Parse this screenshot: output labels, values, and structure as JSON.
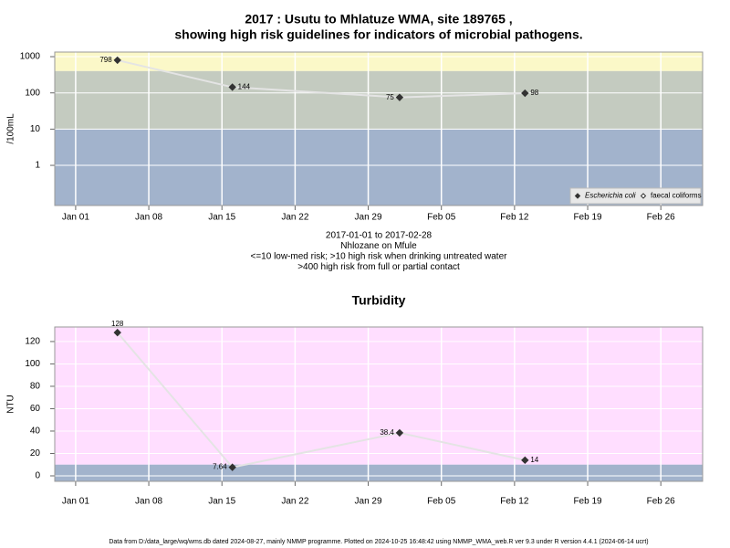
{
  "chart_data": [
    {
      "type": "line",
      "title": [
        "2017 : Usutu to Mhlatuze WMA, site 189765 ,",
        "showing high risk guidelines for indicators of microbial pathogens."
      ],
      "notes": [
        "2017-01-01 to 2017-02-28",
        "Nhlozane on Mfule",
        "<=10 low-med risk; >10 high risk when drinking untreated water",
        ">400 high risk from full or partial contact"
      ],
      "ylabel": "/100mL",
      "log_scale": true,
      "x": [
        "2017-01-05",
        "2017-01-16",
        "2017-02-01",
        "2017-02-13"
      ],
      "xlim": [
        "2016-12-30",
        "2017-03-02"
      ],
      "xticks": [
        {
          "value": "2017-01-01",
          "label": "Jan 01"
        },
        {
          "value": "2017-01-08",
          "label": "Jan 08"
        },
        {
          "value": "2017-01-15",
          "label": "Jan 15"
        },
        {
          "value": "2017-01-22",
          "label": "Jan 22"
        },
        {
          "value": "2017-01-29",
          "label": "Jan 29"
        },
        {
          "value": "2017-02-05",
          "label": "Feb 05"
        },
        {
          "value": "2017-02-12",
          "label": "Feb 12"
        },
        {
          "value": "2017-02-19",
          "label": "Feb 19"
        },
        {
          "value": "2017-02-26",
          "label": "Feb 26"
        }
      ],
      "ylim": [
        0.078,
        1340
      ],
      "yticks": [
        1,
        10,
        100,
        1000
      ],
      "grid": true,
      "bands": [
        {
          "min": 400,
          "color": "#fbf8c8"
        },
        {
          "min": 10,
          "max": 400,
          "color": "#c4cbc0"
        },
        {
          "max": 10,
          "color": "#a2b3cc"
        }
      ],
      "legend": "bottom-right",
      "series": [
        {
          "name": "Escherichia coli",
          "color": "#333333",
          "marker": "filled",
          "values": [
            798,
            144,
            75,
            98
          ]
        },
        {
          "name": "faecal coliforms",
          "color": "#333333",
          "marker": "open",
          "values": [
            null,
            null,
            null,
            null
          ]
        }
      ]
    },
    {
      "type": "line",
      "title": [
        "Turbidity"
      ],
      "ylabel": "NTU",
      "log_scale": false,
      "x": [
        "2017-01-05",
        "2017-01-16",
        "2017-02-01",
        "2017-02-13"
      ],
      "xlim": [
        "2016-12-30",
        "2017-03-02"
      ],
      "xticks": [
        {
          "value": "2017-01-01",
          "label": "Jan 01"
        },
        {
          "value": "2017-01-08",
          "label": "Jan 08"
        },
        {
          "value": "2017-01-15",
          "label": "Jan 15"
        },
        {
          "value": "2017-01-22",
          "label": "Jan 22"
        },
        {
          "value": "2017-01-29",
          "label": "Jan 29"
        },
        {
          "value": "2017-02-05",
          "label": "Feb 05"
        },
        {
          "value": "2017-02-12",
          "label": "Feb 12"
        },
        {
          "value": "2017-02-19",
          "label": "Feb 19"
        },
        {
          "value": "2017-02-26",
          "label": "Feb 26"
        }
      ],
      "ylim": [
        -4.9,
        133
      ],
      "yticks": [
        0,
        20,
        40,
        60,
        80,
        100,
        120
      ],
      "grid": true,
      "bands": [
        {
          "min": 10,
          "color": "#ffdeff"
        },
        {
          "max": 10,
          "color": "#a2b3cc"
        }
      ],
      "series": [
        {
          "color": "#333333",
          "marker": "filled",
          "values": [
            128,
            7.64,
            38.4,
            14
          ]
        }
      ]
    }
  ],
  "footer": "Data from D:/data_large/wq/wms.db dated 2024-08-27, mainly NMMP programme. Plotted on 2024-10-25 16:48:42 using NMMP_WMA_web.R ver 9.3 under R version 4.4.1 (2024-06-14 ucrt)"
}
